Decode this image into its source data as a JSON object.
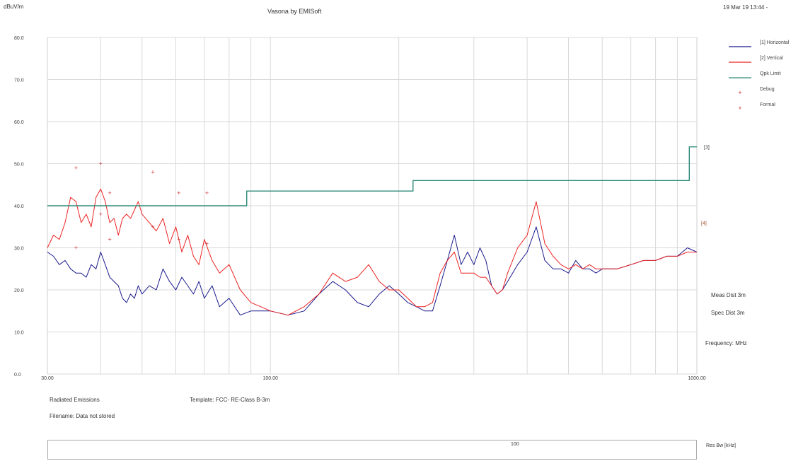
{
  "header": {
    "unit": "dBuV/m",
    "title": "Vasona by EMISoft",
    "datetime": "19 Mar 19 13:44 -"
  },
  "side_info": {
    "meas_dist": "Meas Dist 3m",
    "spec_dist": "Spec Dist 3m",
    "frequency": "Frequency: MHz"
  },
  "footer": {
    "test": "Radiated Emissions",
    "template": "Template: FCC- RE-Class B-3m",
    "filename": "Filename: Data not stored",
    "rbw_label": "Res Bw [kHz]",
    "rbw_value": "100"
  },
  "chart_data": {
    "type": "line",
    "title": "Vasona by EMISoft",
    "ylabel": "dBuV/m",
    "xlabel": "Frequency: MHz",
    "x_scale": "log",
    "xlim": [
      30,
      1000
    ],
    "ylim": [
      0,
      80
    ],
    "grid": true,
    "legend_position": "right",
    "y_ticks": [
      "0.0",
      "10.0",
      "20.0",
      "30.0",
      "40.0",
      "50.0",
      "60.0",
      "70.0",
      "80.0"
    ],
    "y_tick_values": [
      0,
      10,
      20,
      30,
      40,
      50,
      60,
      70,
      80
    ],
    "x_ticks": [
      "30.00",
      "100.00",
      "1000.00"
    ],
    "x_tick_values": [
      30,
      100,
      1000
    ],
    "legend": [
      {
        "label": "[1] Horizontal",
        "color": "#1a1a8c",
        "kind": "line"
      },
      {
        "label": "[2] Vertical",
        "color": "#ee2222",
        "kind": "line"
      },
      {
        "label": "Qpk Limit",
        "color": "#2e8b7a",
        "kind": "line"
      },
      {
        "label": "Debug",
        "color": "#cc3333",
        "kind": "marker"
      },
      {
        "label": "Formal",
        "color": "#cc3333",
        "kind": "marker"
      }
    ],
    "limit_end_labels": [
      "[3]",
      "[4]"
    ],
    "series": [
      {
        "name": "[1] Horizontal",
        "color": "#1a1a8c",
        "x": [
          30,
          31,
          32,
          33,
          34,
          35,
          36,
          37,
          38,
          39,
          40,
          41,
          42,
          43,
          44,
          45,
          46,
          47,
          48,
          49,
          50,
          52,
          54,
          56,
          58,
          60,
          62,
          64,
          66,
          68,
          70,
          73,
          76,
          80,
          85,
          90,
          95,
          100,
          110,
          120,
          130,
          140,
          150,
          160,
          170,
          180,
          190,
          200,
          210,
          220,
          230,
          240,
          250,
          260,
          270,
          280,
          290,
          300,
          310,
          320,
          330,
          340,
          350,
          360,
          380,
          400,
          420,
          440,
          460,
          480,
          500,
          520,
          540,
          560,
          580,
          600,
          650,
          700,
          750,
          800,
          850,
          900,
          950,
          1000
        ],
        "y": [
          29,
          28,
          26,
          27,
          25,
          24,
          24,
          23,
          26,
          25,
          29,
          26,
          23,
          22,
          21,
          18,
          17,
          19,
          18,
          21,
          19,
          21,
          20,
          25,
          22,
          20,
          23,
          21,
          19,
          22,
          18,
          21,
          16,
          18,
          14,
          15,
          15,
          15,
          14,
          15,
          19,
          22,
          20,
          17,
          16,
          19,
          21,
          19,
          17,
          16,
          15,
          15,
          21,
          27,
          33,
          26,
          29,
          26,
          30,
          27,
          21,
          19,
          20,
          22,
          26,
          29,
          35,
          27,
          25,
          25,
          24,
          27,
          25,
          25,
          24,
          25,
          25,
          26,
          27,
          27,
          28,
          28,
          30,
          29
        ]
      },
      {
        "name": "[2] Vertical",
        "color": "#ee2222",
        "x": [
          30,
          31,
          32,
          33,
          34,
          35,
          36,
          37,
          38,
          39,
          40,
          41,
          42,
          43,
          44,
          45,
          46,
          47,
          48,
          49,
          50,
          52,
          54,
          56,
          58,
          60,
          62,
          64,
          66,
          68,
          70,
          73,
          76,
          80,
          85,
          90,
          95,
          100,
          110,
          120,
          130,
          140,
          150,
          160,
          170,
          180,
          190,
          200,
          210,
          220,
          230,
          240,
          250,
          260,
          270,
          280,
          290,
          300,
          310,
          320,
          330,
          340,
          350,
          360,
          380,
          400,
          420,
          440,
          460,
          480,
          500,
          520,
          540,
          560,
          580,
          600,
          650,
          700,
          750,
          800,
          850,
          900,
          950,
          1000
        ],
        "y": [
          30,
          33,
          32,
          36,
          42,
          41,
          36,
          38,
          35,
          42,
          44,
          41,
          36,
          37,
          33,
          37,
          38,
          37,
          39,
          41,
          38,
          36,
          34,
          37,
          31,
          35,
          29,
          33,
          28,
          26,
          32,
          27,
          24,
          26,
          20,
          17,
          16,
          15,
          14,
          16,
          19,
          24,
          22,
          23,
          26,
          22,
          20,
          20,
          18,
          16,
          16,
          17,
          24,
          27,
          29,
          24,
          24,
          24,
          23,
          23,
          21,
          19,
          20,
          24,
          30,
          33,
          41,
          31,
          28,
          26,
          25,
          26,
          25,
          26,
          25,
          25,
          25,
          26,
          27,
          27,
          28,
          28,
          29,
          29
        ]
      },
      {
        "name": "Qpk Limit",
        "color": "#2e8b7a",
        "x": [
          30,
          88,
          88,
          216,
          216,
          960,
          960,
          1000
        ],
        "y": [
          40,
          40,
          43.5,
          43.5,
          46,
          46,
          54,
          54
        ]
      }
    ],
    "markers": [
      {
        "x": 35,
        "y": 49
      },
      {
        "x": 40,
        "y": 50
      },
      {
        "x": 42,
        "y": 43
      },
      {
        "x": 53,
        "y": 48
      },
      {
        "x": 61,
        "y": 43
      },
      {
        "x": 71,
        "y": 43
      },
      {
        "x": 35,
        "y": 30
      },
      {
        "x": 40,
        "y": 38
      },
      {
        "x": 42,
        "y": 32
      },
      {
        "x": 53,
        "y": 35
      },
      {
        "x": 61,
        "y": 32
      },
      {
        "x": 71,
        "y": 31
      }
    ]
  }
}
